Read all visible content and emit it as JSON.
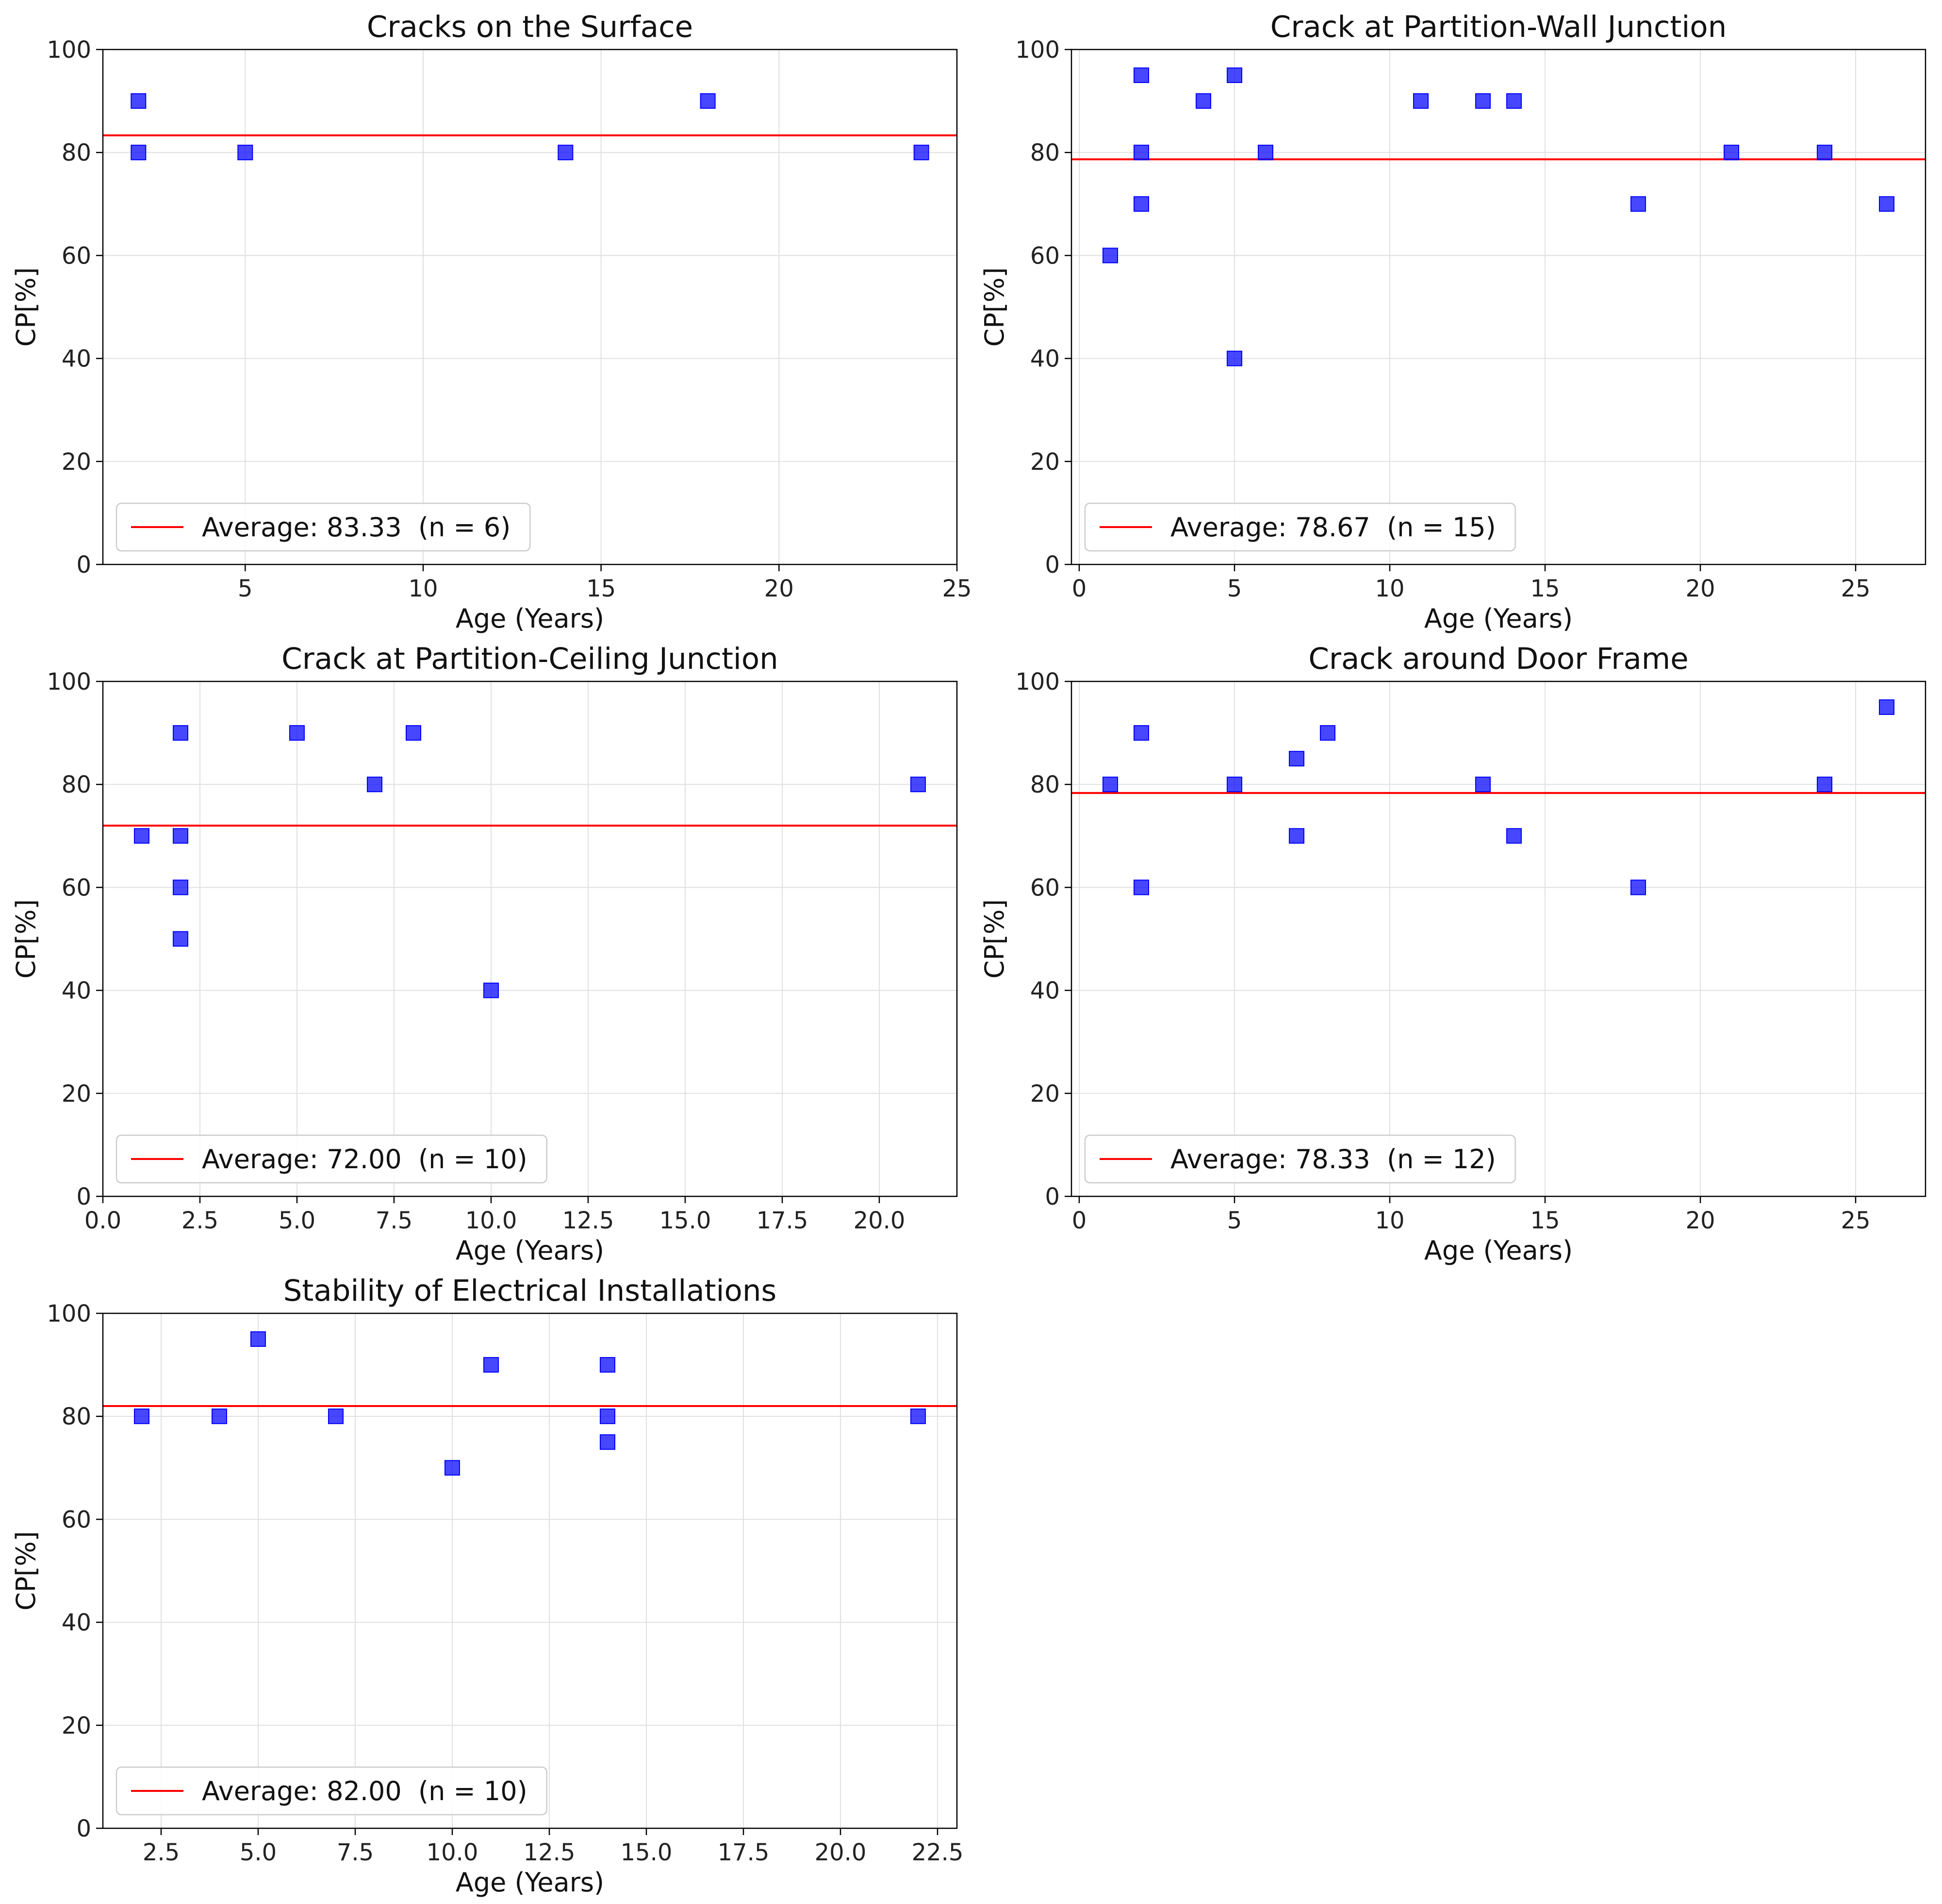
{
  "colors": {
    "marker": "#0000ff",
    "average_line": "#ff0000",
    "grid": "#e0e0e0",
    "frame": "#000000"
  },
  "chart_data": [
    {
      "type": "scatter",
      "title": "Cracks on the Surface",
      "xlabel": "Age (Years)",
      "ylabel": "CP[%]",
      "xlim": [
        1.0,
        25.0
      ],
      "ylim": [
        0,
        100
      ],
      "xticks": [
        5,
        10,
        15,
        20,
        25
      ],
      "xtick_labels": [
        "5",
        "10",
        "15",
        "20",
        "25"
      ],
      "yticks": [
        0,
        20,
        40,
        60,
        80,
        100
      ],
      "ytick_labels": [
        "0",
        "20",
        "40",
        "60",
        "80",
        "100"
      ],
      "points": [
        [
          2,
          90
        ],
        [
          2,
          80
        ],
        [
          5,
          80
        ],
        [
          14,
          80
        ],
        [
          18,
          90
        ],
        [
          24,
          80
        ]
      ],
      "average": 83.33,
      "legend_label": "Average: 83.33  (n = 6)",
      "legend_loc": "lower left"
    },
    {
      "type": "scatter",
      "title": "Crack at Partition-Wall Junction",
      "xlabel": "Age (Years)",
      "ylabel": "CP[%]",
      "xlim": [
        -0.25,
        27.25
      ],
      "ylim": [
        0,
        100
      ],
      "xticks": [
        0,
        5,
        10,
        15,
        20,
        25
      ],
      "xtick_labels": [
        "0",
        "5",
        "10",
        "15",
        "20",
        "25"
      ],
      "yticks": [
        0,
        20,
        40,
        60,
        80,
        100
      ],
      "ytick_labels": [
        "0",
        "20",
        "40",
        "60",
        "80",
        "100"
      ],
      "points": [
        [
          1,
          60
        ],
        [
          2,
          95
        ],
        [
          2,
          80
        ],
        [
          2,
          70
        ],
        [
          4,
          90
        ],
        [
          5,
          95
        ],
        [
          5,
          40
        ],
        [
          6,
          80
        ],
        [
          11,
          90
        ],
        [
          13,
          90
        ],
        [
          14,
          90
        ],
        [
          18,
          70
        ],
        [
          21,
          80
        ],
        [
          24,
          80
        ],
        [
          26,
          70
        ]
      ],
      "average": 78.67,
      "legend_label": "Average: 78.67  (n = 15)",
      "legend_loc": "lower left"
    },
    {
      "type": "scatter",
      "title": "Crack at Partition-Ceiling Junction",
      "xlabel": "Age (Years)",
      "ylabel": "CP[%]",
      "xlim": [
        0.0,
        22.0
      ],
      "ylim": [
        0,
        100
      ],
      "xticks": [
        0,
        2.5,
        5,
        7.5,
        10,
        12.5,
        15,
        17.5,
        20
      ],
      "xtick_labels": [
        "0.0",
        "2.5",
        "5.0",
        "7.5",
        "10.0",
        "12.5",
        "15.0",
        "17.5",
        "20.0"
      ],
      "yticks": [
        0,
        20,
        40,
        60,
        80,
        100
      ],
      "ytick_labels": [
        "0",
        "20",
        "40",
        "60",
        "80",
        "100"
      ],
      "points": [
        [
          1,
          70
        ],
        [
          2,
          90
        ],
        [
          2,
          70
        ],
        [
          2,
          60
        ],
        [
          2,
          50
        ],
        [
          5,
          90
        ],
        [
          7,
          80
        ],
        [
          8,
          90
        ],
        [
          10,
          40
        ],
        [
          21,
          80
        ]
      ],
      "average": 72.0,
      "legend_label": "Average: 72.00  (n = 10)",
      "legend_loc": "lower left"
    },
    {
      "type": "scatter",
      "title": "Crack around Door Frame",
      "xlabel": "Age (Years)",
      "ylabel": "CP[%]",
      "xlim": [
        -0.25,
        27.25
      ],
      "ylim": [
        0,
        100
      ],
      "xticks": [
        0,
        5,
        10,
        15,
        20,
        25
      ],
      "xtick_labels": [
        "0",
        "5",
        "10",
        "15",
        "20",
        "25"
      ],
      "yticks": [
        0,
        20,
        40,
        60,
        80,
        100
      ],
      "ytick_labels": [
        "0",
        "20",
        "40",
        "60",
        "80",
        "100"
      ],
      "points": [
        [
          1,
          80
        ],
        [
          2,
          90
        ],
        [
          2,
          60
        ],
        [
          5,
          80
        ],
        [
          7,
          85
        ],
        [
          7,
          70
        ],
        [
          8,
          90
        ],
        [
          13,
          80
        ],
        [
          14,
          70
        ],
        [
          18,
          60
        ],
        [
          24,
          80
        ],
        [
          26,
          95
        ]
      ],
      "average": 78.33,
      "legend_label": "Average: 78.33  (n = 12)",
      "legend_loc": "lower left"
    },
    {
      "type": "scatter",
      "title": "Stability of Electrical Installations",
      "xlabel": "Age (Years)",
      "ylabel": "CP[%]",
      "xlim": [
        1.0,
        23.0
      ],
      "ylim": [
        0,
        100
      ],
      "xticks": [
        2.5,
        5,
        7.5,
        10,
        12.5,
        15,
        17.5,
        20,
        22.5
      ],
      "xtick_labels": [
        "2.5",
        "5.0",
        "7.5",
        "10.0",
        "12.5",
        "15.0",
        "17.5",
        "20.0",
        "22.5"
      ],
      "yticks": [
        0,
        20,
        40,
        60,
        80,
        100
      ],
      "ytick_labels": [
        "0",
        "20",
        "40",
        "60",
        "80",
        "100"
      ],
      "points": [
        [
          2,
          80
        ],
        [
          4,
          80
        ],
        [
          5,
          95
        ],
        [
          7,
          80
        ],
        [
          10,
          70
        ],
        [
          11,
          90
        ],
        [
          14,
          90
        ],
        [
          14,
          80
        ],
        [
          14,
          75
        ],
        [
          22,
          80
        ]
      ],
      "average": 82.0,
      "legend_label": "Average: 82.00  (n = 10)",
      "legend_loc": "lower left"
    }
  ]
}
